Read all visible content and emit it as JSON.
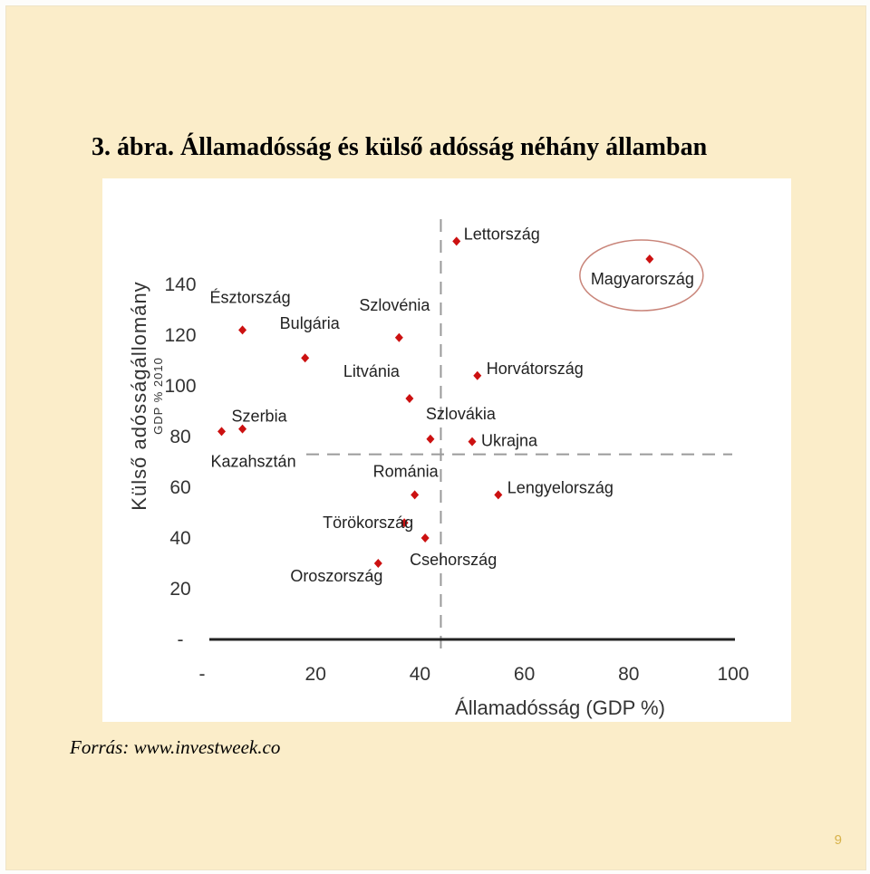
{
  "slide": {
    "title": "3. ábra. Államadósság és külső adósság néhány államban",
    "source": "Forrás: www.investweek.co",
    "page_number": "9"
  },
  "colors": {
    "background": "#fbedc9",
    "point": "#cc1111",
    "highlight_ellipse": "#c9857a",
    "axis": "#222222",
    "reference_line": "#9a9a9a",
    "page_number": "#d7b24a"
  },
  "chart_data": {
    "type": "scatter",
    "xlabel": "Államadósság (GDP %)",
    "ylabel": "Külső adósságállomány",
    "ylabel_sub": "GDP % 2010",
    "xlim": [
      0,
      100
    ],
    "ylim": [
      0,
      150
    ],
    "x_ticks": [
      "-",
      "20",
      "40",
      "60",
      "80",
      "100"
    ],
    "y_ticks": [
      "-",
      "20",
      "40",
      "60",
      "80",
      "100",
      "120",
      "140"
    ],
    "reference_lines": {
      "x": 44,
      "y": 73
    },
    "grid": false,
    "highlight": "Magyarország",
    "points": [
      {
        "label": "Lettország",
        "x": 47,
        "y": 157
      },
      {
        "label": "Magyarország",
        "x": 84,
        "y": 150
      },
      {
        "label": "Észtország",
        "x": 6,
        "y": 122
      },
      {
        "label": "Bulgária",
        "x": 18,
        "y": 111
      },
      {
        "label": "Szlovénia",
        "x": 36,
        "y": 119
      },
      {
        "label": "Litvánia",
        "x": 38,
        "y": 95
      },
      {
        "label": "Horvátország",
        "x": 51,
        "y": 104
      },
      {
        "label": "Szerbia",
        "x": 6,
        "y": 83
      },
      {
        "label": "Kazahsztán",
        "x": 2,
        "y": 82
      },
      {
        "label": "Szlovákia",
        "x": 42,
        "y": 79
      },
      {
        "label": "Ukrajna",
        "x": 50,
        "y": 78
      },
      {
        "label": "Románia",
        "x": 39,
        "y": 57
      },
      {
        "label": "Lengyelország",
        "x": 55,
        "y": 57
      },
      {
        "label": "Törökország",
        "x": 37,
        "y": 46
      },
      {
        "label": "Csehország",
        "x": 41,
        "y": 40
      },
      {
        "label": "Oroszország",
        "x": 32,
        "y": 30
      }
    ]
  }
}
